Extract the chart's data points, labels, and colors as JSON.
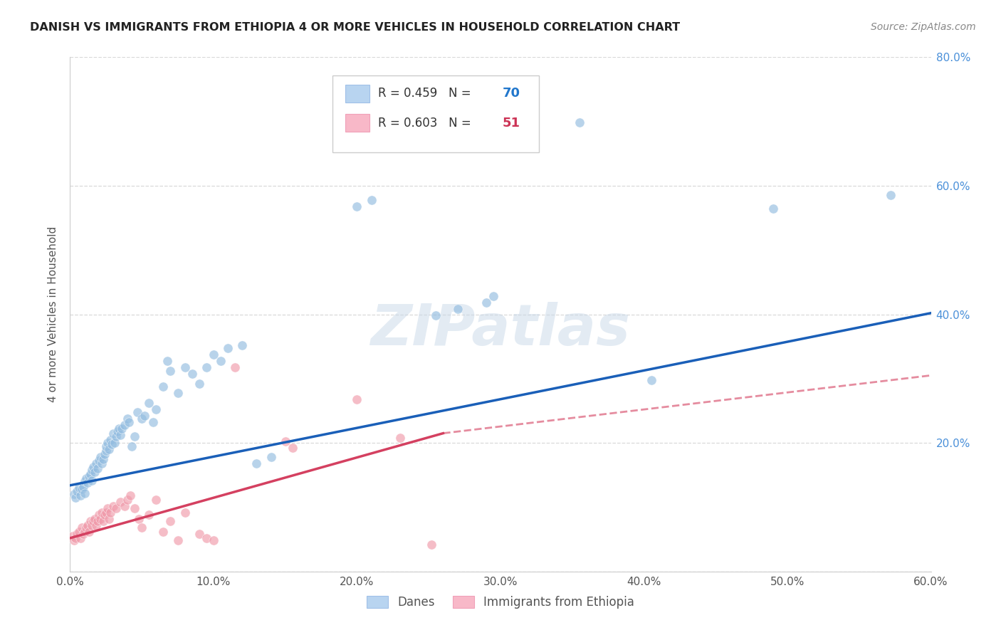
{
  "title": "DANISH VS IMMIGRANTS FROM ETHIOPIA 4 OR MORE VEHICLES IN HOUSEHOLD CORRELATION CHART",
  "source": "Source: ZipAtlas.com",
  "ylabel": "4 or more Vehicles in Household",
  "xlim": [
    0.0,
    0.6
  ],
  "ylim": [
    0.0,
    0.8
  ],
  "xticks": [
    0.0,
    0.1,
    0.2,
    0.3,
    0.4,
    0.5,
    0.6
  ],
  "yticks": [
    0.0,
    0.2,
    0.4,
    0.6,
    0.8
  ],
  "xtick_labels": [
    "0.0%",
    "10.0%",
    "20.0%",
    "30.0%",
    "40.0%",
    "50.0%",
    "60.0%"
  ],
  "ytick_labels": [
    "",
    "20.0%",
    "40.0%",
    "60.0%",
    "80.0%"
  ],
  "danes_color": "#92bce0",
  "eth_color": "#f09aaa",
  "danes_line_color": "#1a5fb8",
  "eth_line_color": "#d44060",
  "background_color": "#ffffff",
  "grid_color": "#d0d0d0",
  "danes_line": [
    0.0,
    0.134,
    0.6,
    0.402
  ],
  "eth_line_solid": [
    0.0,
    0.052,
    0.26,
    0.215
  ],
  "eth_line_dash": [
    0.26,
    0.215,
    0.6,
    0.305
  ],
  "danes_scatter": [
    [
      0.003,
      0.12
    ],
    [
      0.004,
      0.115
    ],
    [
      0.005,
      0.125
    ],
    [
      0.006,
      0.13
    ],
    [
      0.007,
      0.118
    ],
    [
      0.008,
      0.128
    ],
    [
      0.009,
      0.132
    ],
    [
      0.01,
      0.14
    ],
    [
      0.01,
      0.122
    ],
    [
      0.011,
      0.145
    ],
    [
      0.012,
      0.138
    ],
    [
      0.013,
      0.148
    ],
    [
      0.014,
      0.152
    ],
    [
      0.015,
      0.158
    ],
    [
      0.015,
      0.142
    ],
    [
      0.016,
      0.162
    ],
    [
      0.017,
      0.155
    ],
    [
      0.018,
      0.168
    ],
    [
      0.019,
      0.16
    ],
    [
      0.02,
      0.172
    ],
    [
      0.021,
      0.178
    ],
    [
      0.022,
      0.168
    ],
    [
      0.023,
      0.175
    ],
    [
      0.024,
      0.182
    ],
    [
      0.025,
      0.188
    ],
    [
      0.025,
      0.195
    ],
    [
      0.026,
      0.2
    ],
    [
      0.027,
      0.19
    ],
    [
      0.028,
      0.205
    ],
    [
      0.029,
      0.198
    ],
    [
      0.03,
      0.215
    ],
    [
      0.031,
      0.2
    ],
    [
      0.032,
      0.21
    ],
    [
      0.033,
      0.218
    ],
    [
      0.034,
      0.222
    ],
    [
      0.035,
      0.212
    ],
    [
      0.036,
      0.222
    ],
    [
      0.038,
      0.228
    ],
    [
      0.04,
      0.238
    ],
    [
      0.041,
      0.232
    ],
    [
      0.043,
      0.195
    ],
    [
      0.045,
      0.21
    ],
    [
      0.047,
      0.248
    ],
    [
      0.05,
      0.238
    ],
    [
      0.052,
      0.242
    ],
    [
      0.055,
      0.262
    ],
    [
      0.058,
      0.232
    ],
    [
      0.06,
      0.252
    ],
    [
      0.065,
      0.288
    ],
    [
      0.068,
      0.328
    ],
    [
      0.07,
      0.312
    ],
    [
      0.075,
      0.278
    ],
    [
      0.08,
      0.318
    ],
    [
      0.085,
      0.308
    ],
    [
      0.09,
      0.292
    ],
    [
      0.095,
      0.318
    ],
    [
      0.1,
      0.338
    ],
    [
      0.105,
      0.328
    ],
    [
      0.11,
      0.348
    ],
    [
      0.12,
      0.352
    ],
    [
      0.13,
      0.168
    ],
    [
      0.14,
      0.178
    ],
    [
      0.2,
      0.568
    ],
    [
      0.21,
      0.578
    ],
    [
      0.255,
      0.398
    ],
    [
      0.27,
      0.408
    ],
    [
      0.29,
      0.418
    ],
    [
      0.295,
      0.428
    ],
    [
      0.355,
      0.698
    ],
    [
      0.405,
      0.298
    ],
    [
      0.49,
      0.565
    ],
    [
      0.572,
      0.585
    ]
  ],
  "eth_scatter": [
    [
      0.002,
      0.055
    ],
    [
      0.003,
      0.048
    ],
    [
      0.004,
      0.052
    ],
    [
      0.005,
      0.058
    ],
    [
      0.006,
      0.062
    ],
    [
      0.007,
      0.052
    ],
    [
      0.008,
      0.068
    ],
    [
      0.009,
      0.058
    ],
    [
      0.01,
      0.062
    ],
    [
      0.011,
      0.068
    ],
    [
      0.012,
      0.072
    ],
    [
      0.013,
      0.062
    ],
    [
      0.014,
      0.078
    ],
    [
      0.015,
      0.072
    ],
    [
      0.016,
      0.078
    ],
    [
      0.017,
      0.082
    ],
    [
      0.018,
      0.072
    ],
    [
      0.019,
      0.078
    ],
    [
      0.02,
      0.088
    ],
    [
      0.021,
      0.082
    ],
    [
      0.022,
      0.092
    ],
    [
      0.023,
      0.078
    ],
    [
      0.024,
      0.088
    ],
    [
      0.025,
      0.092
    ],
    [
      0.026,
      0.098
    ],
    [
      0.027,
      0.082
    ],
    [
      0.028,
      0.092
    ],
    [
      0.03,
      0.102
    ],
    [
      0.032,
      0.098
    ],
    [
      0.035,
      0.108
    ],
    [
      0.038,
      0.102
    ],
    [
      0.04,
      0.112
    ],
    [
      0.042,
      0.118
    ],
    [
      0.045,
      0.098
    ],
    [
      0.048,
      0.082
    ],
    [
      0.05,
      0.068
    ],
    [
      0.055,
      0.088
    ],
    [
      0.06,
      0.112
    ],
    [
      0.065,
      0.062
    ],
    [
      0.07,
      0.078
    ],
    [
      0.075,
      0.048
    ],
    [
      0.08,
      0.092
    ],
    [
      0.09,
      0.058
    ],
    [
      0.095,
      0.052
    ],
    [
      0.1,
      0.048
    ],
    [
      0.115,
      0.318
    ],
    [
      0.15,
      0.202
    ],
    [
      0.155,
      0.192
    ],
    [
      0.2,
      0.268
    ],
    [
      0.23,
      0.208
    ],
    [
      0.252,
      0.042
    ]
  ]
}
